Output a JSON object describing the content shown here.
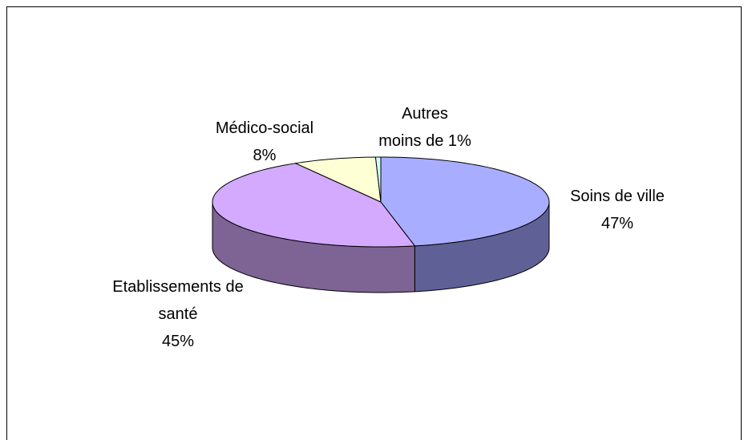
{
  "chart_data": {
    "type": "pie3d",
    "categories": [
      "Soins de ville",
      "Etablissements de santé",
      "Médico-social",
      "Autres"
    ],
    "values": [
      47,
      45,
      8,
      0.5
    ],
    "value_labels": [
      "47%",
      "45%",
      "8%",
      "moins de 1%"
    ],
    "colors": [
      "#a9adff",
      "#d3aaff",
      "#ffffd6",
      "#ccffff"
    ],
    "side_colors": [
      "#5f6196",
      "#7d6494",
      "#9a9a80",
      "#7a9999"
    ]
  }
}
